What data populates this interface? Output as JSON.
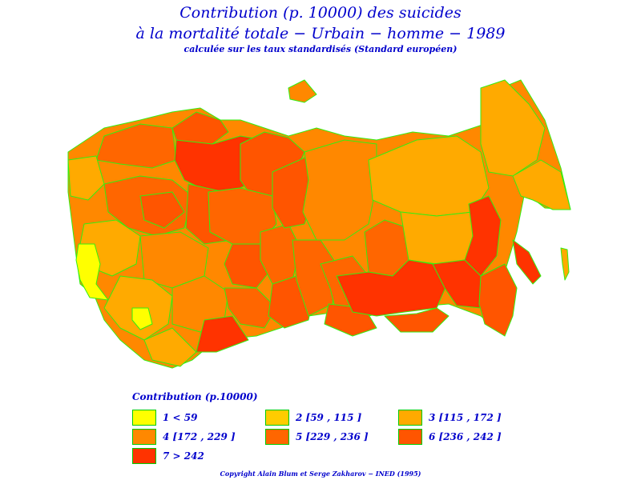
{
  "title": {
    "line1": "Contribution (p. 10000) des suicides",
    "line2": "à la mortalité totale − Urbain − homme − 1989",
    "line3": "calculée sur les taux standardisés (Standard européen)"
  },
  "colors": {
    "border": "#33ee11",
    "c1": "#ffff00",
    "c2": "#ffcc00",
    "c3": "#ffaa00",
    "c4": "#ff8800",
    "c5": "#ff6600",
    "c6": "#ff5500",
    "c7": "#ff3300"
  },
  "legend": {
    "title": "Contribution (p.10000)",
    "classes": [
      {
        "label": "1  <  59",
        "color": "#ffff00"
      },
      {
        "label": "2  [59  ,  115  ]",
        "color": "#ffcc00"
      },
      {
        "label": "3  [115  ,  172  ]",
        "color": "#ffaa00"
      },
      {
        "label": "4  [172  ,  229  ]",
        "color": "#ff8800"
      },
      {
        "label": "5  [229  ,  236  ]",
        "color": "#ff6600"
      },
      {
        "label": "6  [236  ,  242  ]",
        "color": "#ff5500"
      },
      {
        "label": "7  >  242",
        "color": "#ff3300"
      }
    ]
  },
  "copyright": "Copyright Alain Blum et Serge Zakharov  −  INED (1995)"
}
